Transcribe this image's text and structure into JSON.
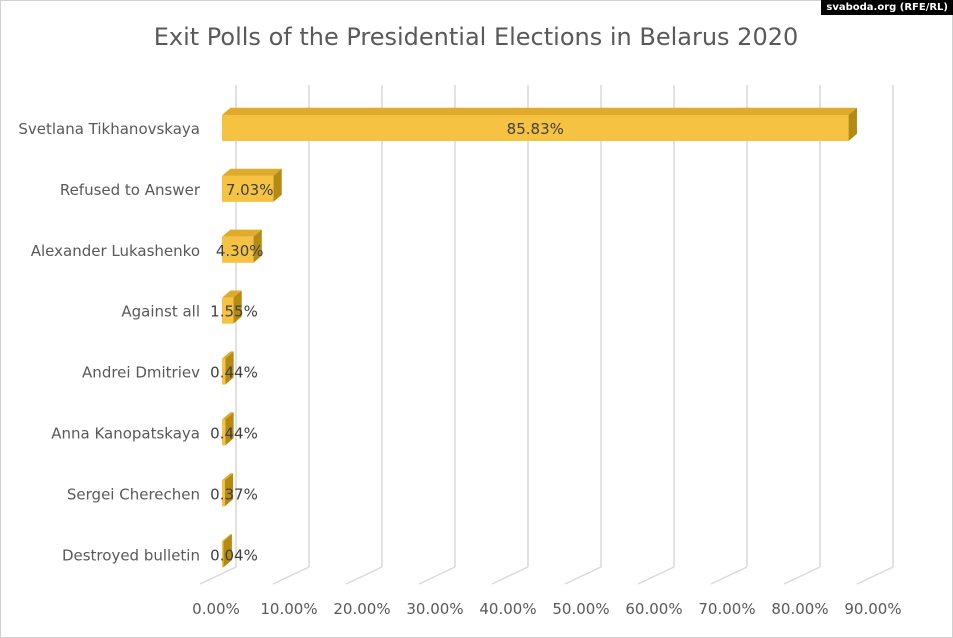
{
  "watermark": "svaboda.org (RFE/RL)",
  "chart_data": {
    "type": "bar",
    "orientation": "horizontal",
    "style": "3d",
    "title": "Exit Polls of the Presidential Elections in Belarus 2020",
    "categories": [
      "Svetlana Tikhanovskaya",
      "Refused to Answer",
      "Alexander Lukashenko",
      "Against all",
      "Andrei Dmitriev",
      "Anna Kanopatskaya",
      "Sergei Cherechen",
      "Destroyed bulletin"
    ],
    "values": [
      85.83,
      7.03,
      4.3,
      1.55,
      0.44,
      0.44,
      0.37,
      0.04
    ],
    "data_labels": [
      "85.83%",
      "7.03%",
      "4.30%",
      "1.55%",
      "0.44%",
      "0.44%",
      "0.37%",
      "0.04%"
    ],
    "xlim": [
      0,
      90
    ],
    "x_ticks": [
      "0.00%",
      "10.00%",
      "20.00%",
      "30.00%",
      "40.00%",
      "50.00%",
      "60.00%",
      "70.00%",
      "80.00%",
      "90.00%"
    ],
    "grid": true,
    "legend": "none",
    "colors": {
      "bar_front": "#f5c242",
      "bar_top": "#e0aa2a",
      "bar_side": "#b58a12",
      "grid": "#d9d9d9",
      "text": "#595959"
    }
  }
}
